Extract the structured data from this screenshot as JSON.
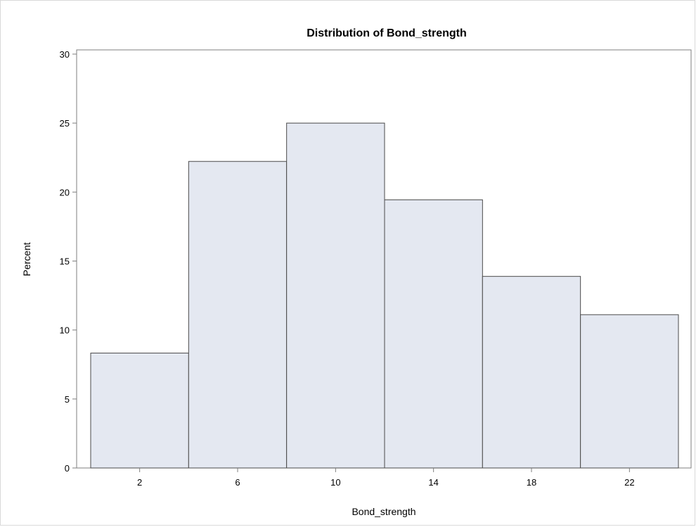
{
  "chart_data": {
    "type": "bar",
    "title": "Distribution of Bond_strength",
    "xlabel": "Bond_strength",
    "ylabel": "Percent",
    "categories": [
      "2",
      "6",
      "10",
      "14",
      "18",
      "22"
    ],
    "bin_width": 4,
    "values": [
      8.33,
      22.22,
      25.0,
      19.44,
      13.89,
      11.11
    ],
    "xlim": [
      0,
      24
    ],
    "ylim": [
      0,
      30
    ],
    "yticks": [
      0,
      5,
      10,
      15,
      20,
      25,
      30
    ],
    "grid": false,
    "legend": "none",
    "colors": {
      "bar_fill": "#e4e8f1",
      "bar_stroke": "#4a4a4a",
      "frame": "#7f7f7f"
    }
  }
}
